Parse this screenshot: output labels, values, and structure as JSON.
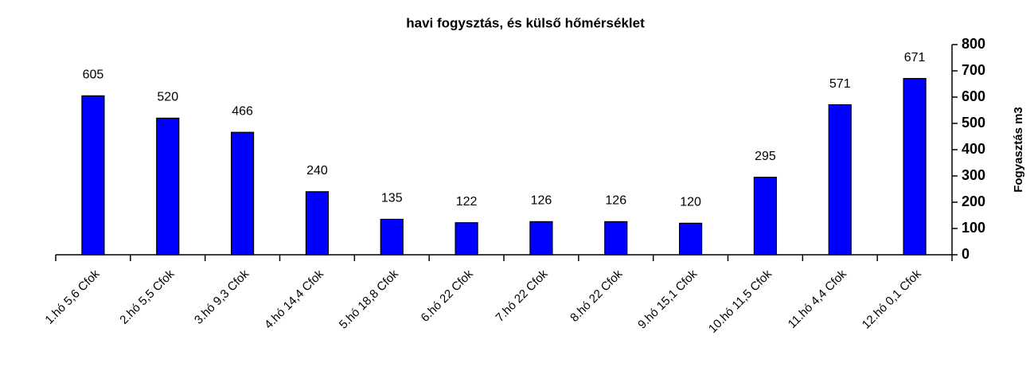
{
  "chart_data": {
    "type": "bar",
    "title": "havi fogysztás, és külső hőmérséklet",
    "y_axis_label": "Fogyasztás m3",
    "categories": [
      "1.hó 5,6 Cfok",
      "2.hó 5,5 Cfok",
      "3.hó 9,3 Cfok",
      "4.hó 14,4 Cfok",
      "5.hó 18,8 Cfok",
      "6.hó 22 Cfok",
      "7.hó 22 Cfok",
      "8.hó 22 Cfok",
      "9.hó 15,1 Cfok",
      "10.hó 11,5 Cfok",
      "11.hó 4,4 Cfok",
      "12.hó 0,1 Cfok"
    ],
    "values": [
      605,
      520,
      466,
      240,
      135,
      122,
      126,
      126,
      120,
      295,
      571,
      671
    ],
    "color": "#0000ff",
    "ylim": [
      0,
      800
    ],
    "yticks": [
      0,
      100,
      200,
      300,
      400,
      500,
      600,
      700,
      800
    ],
    "y_axis_side": "right",
    "grid": false
  }
}
